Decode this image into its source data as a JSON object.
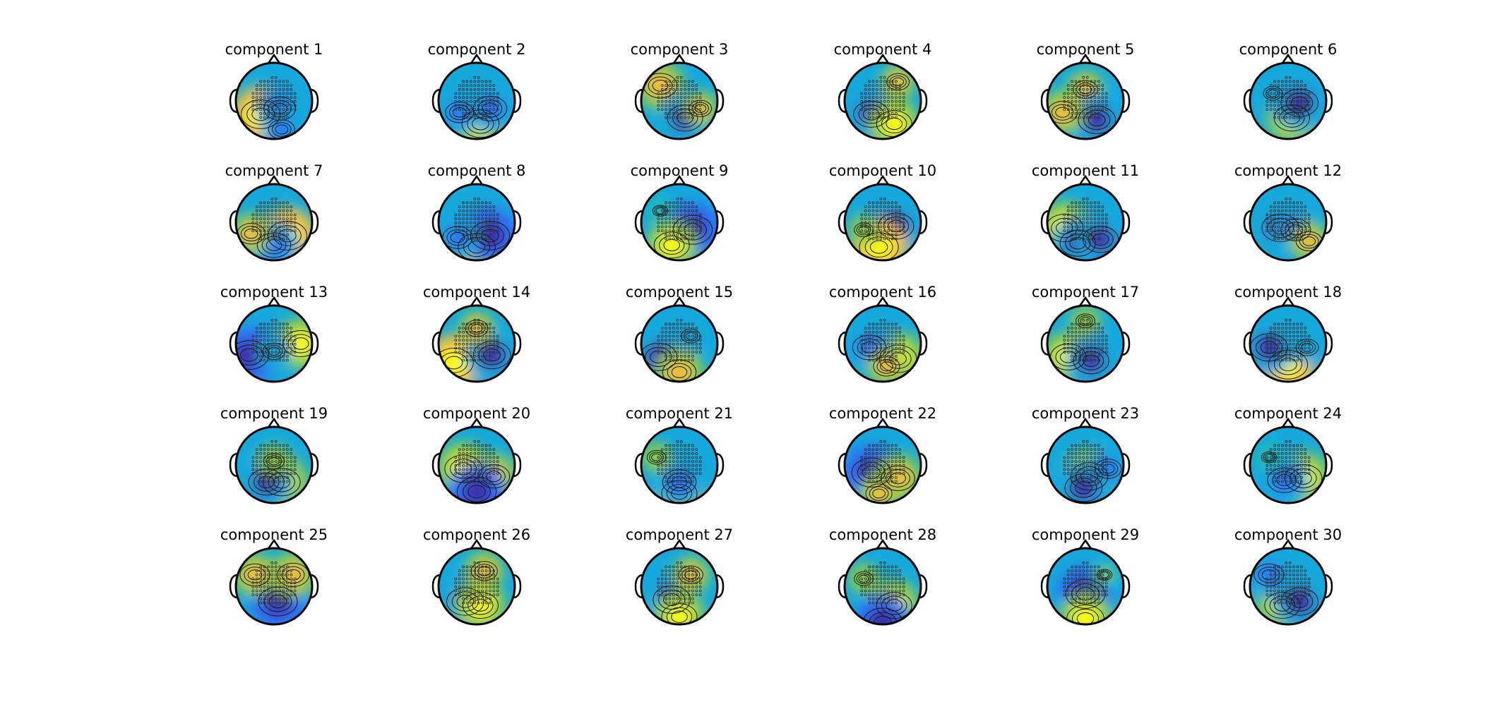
{
  "figure": {
    "rows": 5,
    "cols": 6,
    "colormap": [
      "#3e26a8",
      "#2f6ff5",
      "#16a8db",
      "#27c3a4",
      "#8cc94a",
      "#f2bd3a",
      "#f9fb0e"
    ],
    "outline_color": "#000000",
    "background": "#ffffff"
  },
  "components": [
    {
      "title": "component 1",
      "blobs": [
        {
          "dx": -0.35,
          "dy": 0.35,
          "v": 0.95
        },
        {
          "dx": 0.15,
          "dy": 0.2,
          "v": -0.75
        },
        {
          "dx": 0.2,
          "dy": 0.75,
          "v": -0.6
        }
      ]
    },
    {
      "title": "component 2",
      "blobs": [
        {
          "dx": 0.1,
          "dy": 0.6,
          "v": 0.9
        },
        {
          "dx": 0.35,
          "dy": 0.2,
          "v": -0.8
        },
        {
          "dx": -0.45,
          "dy": 0.3,
          "v": -0.65
        }
      ]
    },
    {
      "title": "component 3",
      "blobs": [
        {
          "dx": -0.5,
          "dy": -0.4,
          "v": 0.8
        },
        {
          "dx": 0.15,
          "dy": 0.45,
          "v": -0.85
        },
        {
          "dx": 0.55,
          "dy": 0.2,
          "v": 0.5
        }
      ]
    },
    {
      "title": "component 4",
      "blobs": [
        {
          "dx": -0.3,
          "dy": 0.35,
          "v": -0.85
        },
        {
          "dx": 0.3,
          "dy": 0.6,
          "v": 0.85
        },
        {
          "dx": 0.4,
          "dy": -0.5,
          "v": 0.5
        }
      ]
    },
    {
      "title": "component 5",
      "blobs": [
        {
          "dx": 0.0,
          "dy": -0.3,
          "v": 0.55
        },
        {
          "dx": 0.3,
          "dy": 0.5,
          "v": -0.9
        },
        {
          "dx": -0.6,
          "dy": 0.3,
          "v": 0.7
        }
      ]
    },
    {
      "title": "component 6",
      "blobs": [
        {
          "dx": 0.1,
          "dy": 0.45,
          "v": 0.85
        },
        {
          "dx": 0.3,
          "dy": 0.05,
          "v": -0.9
        },
        {
          "dx": -0.4,
          "dy": -0.2,
          "v": -0.4
        }
      ]
    },
    {
      "title": "component 7",
      "blobs": [
        {
          "dx": 0.35,
          "dy": 0.35,
          "v": 0.95
        },
        {
          "dx": 0.0,
          "dy": 0.6,
          "v": -0.8
        },
        {
          "dx": -0.6,
          "dy": 0.3,
          "v": 0.65
        }
      ]
    },
    {
      "title": "component 8",
      "blobs": [
        {
          "dx": 0.0,
          "dy": 0.65,
          "v": 0.9
        },
        {
          "dx": 0.35,
          "dy": 0.35,
          "v": -0.95
        },
        {
          "dx": -0.5,
          "dy": 0.4,
          "v": -0.7
        }
      ]
    },
    {
      "title": "component 9",
      "blobs": [
        {
          "dx": 0.35,
          "dy": 0.2,
          "v": -0.95
        },
        {
          "dx": -0.2,
          "dy": 0.6,
          "v": 0.85
        },
        {
          "dx": -0.5,
          "dy": -0.3,
          "v": -0.3
        }
      ]
    },
    {
      "title": "component 10",
      "blobs": [
        {
          "dx": 0.35,
          "dy": 0.1,
          "v": -0.85
        },
        {
          "dx": -0.1,
          "dy": 0.65,
          "v": 0.95
        },
        {
          "dx": -0.5,
          "dy": 0.2,
          "v": 0.4
        }
      ]
    },
    {
      "title": "component 11",
      "blobs": [
        {
          "dx": -0.55,
          "dy": 0.15,
          "v": 0.9
        },
        {
          "dx": -0.2,
          "dy": 0.55,
          "v": -0.85
        },
        {
          "dx": 0.4,
          "dy": 0.45,
          "v": -0.85
        }
      ]
    },
    {
      "title": "component 12",
      "blobs": [
        {
          "dx": -0.2,
          "dy": 0.15,
          "v": -0.9
        },
        {
          "dx": 0.2,
          "dy": 0.2,
          "v": -0.7
        },
        {
          "dx": 0.55,
          "dy": 0.5,
          "v": 0.6
        }
      ]
    },
    {
      "title": "component 13",
      "blobs": [
        {
          "dx": -0.65,
          "dy": 0.3,
          "v": -0.95
        },
        {
          "dx": 0.7,
          "dy": 0.0,
          "v": 0.85
        },
        {
          "dx": 0.0,
          "dy": 0.2,
          "v": -0.5
        }
      ]
    },
    {
      "title": "component 14",
      "blobs": [
        {
          "dx": -0.6,
          "dy": 0.5,
          "v": 0.95
        },
        {
          "dx": 0.4,
          "dy": 0.3,
          "v": -0.9
        },
        {
          "dx": 0.0,
          "dy": -0.4,
          "v": 0.5
        }
      ]
    },
    {
      "title": "component 15",
      "blobs": [
        {
          "dx": -0.55,
          "dy": 0.35,
          "v": -0.9
        },
        {
          "dx": 0.0,
          "dy": 0.75,
          "v": 0.8
        },
        {
          "dx": 0.3,
          "dy": -0.2,
          "v": -0.4
        }
      ]
    },
    {
      "title": "component 16",
      "blobs": [
        {
          "dx": 0.4,
          "dy": 0.4,
          "v": 0.9
        },
        {
          "dx": -0.35,
          "dy": 0.1,
          "v": -0.8
        },
        {
          "dx": 0.1,
          "dy": 0.6,
          "v": 0.6
        }
      ]
    },
    {
      "title": "component 17",
      "blobs": [
        {
          "dx": -0.45,
          "dy": 0.35,
          "v": 0.85
        },
        {
          "dx": 0.15,
          "dy": 0.45,
          "v": -0.85
        },
        {
          "dx": 0.0,
          "dy": -0.6,
          "v": 0.4
        }
      ]
    },
    {
      "title": "component 18",
      "blobs": [
        {
          "dx": 0.0,
          "dy": 0.55,
          "v": 0.95
        },
        {
          "dx": -0.5,
          "dy": 0.1,
          "v": -0.9
        },
        {
          "dx": 0.5,
          "dy": 0.1,
          "v": -0.5
        }
      ]
    },
    {
      "title": "component 19",
      "blobs": [
        {
          "dx": 0.2,
          "dy": 0.45,
          "v": 0.9
        },
        {
          "dx": -0.2,
          "dy": 0.45,
          "v": -0.85
        },
        {
          "dx": 0.0,
          "dy": -0.1,
          "v": 0.45
        }
      ]
    },
    {
      "title": "component 20",
      "blobs": [
        {
          "dx": -0.35,
          "dy": 0.1,
          "v": 0.9
        },
        {
          "dx": 0.45,
          "dy": 0.3,
          "v": 0.75
        },
        {
          "dx": 0.0,
          "dy": 0.7,
          "v": -0.95
        }
      ]
    },
    {
      "title": "component 21",
      "blobs": [
        {
          "dx": 0.0,
          "dy": 0.75,
          "v": 0.85
        },
        {
          "dx": 0.0,
          "dy": 0.45,
          "v": -0.8
        },
        {
          "dx": -0.6,
          "dy": -0.2,
          "v": 0.4
        }
      ]
    },
    {
      "title": "component 22",
      "blobs": [
        {
          "dx": -0.3,
          "dy": 0.2,
          "v": -0.95
        },
        {
          "dx": 0.4,
          "dy": 0.35,
          "v": 0.8
        },
        {
          "dx": -0.1,
          "dy": 0.75,
          "v": 0.6
        }
      ]
    },
    {
      "title": "component 23",
      "blobs": [
        {
          "dx": 0.1,
          "dy": 0.3,
          "v": 0.9
        },
        {
          "dx": -0.05,
          "dy": 0.6,
          "v": -0.9
        },
        {
          "dx": 0.6,
          "dy": 0.1,
          "v": -0.6
        }
      ]
    },
    {
      "title": "component 24",
      "blobs": [
        {
          "dx": 0.4,
          "dy": 0.35,
          "v": 0.9
        },
        {
          "dx": -0.1,
          "dy": 0.4,
          "v": -0.8
        },
        {
          "dx": -0.5,
          "dy": -0.2,
          "v": -0.3
        }
      ]
    },
    {
      "title": "component 25",
      "blobs": [
        {
          "dx": 0.1,
          "dy": 0.4,
          "v": -0.95
        },
        {
          "dx": -0.5,
          "dy": -0.3,
          "v": 0.7
        },
        {
          "dx": 0.5,
          "dy": -0.3,
          "v": 0.75
        }
      ]
    },
    {
      "title": "component 26",
      "blobs": [
        {
          "dx": -0.3,
          "dy": 0.4,
          "v": -0.9
        },
        {
          "dx": 0.1,
          "dy": 0.5,
          "v": 0.85
        },
        {
          "dx": 0.2,
          "dy": -0.4,
          "v": 0.6
        }
      ]
    },
    {
      "title": "component 27",
      "blobs": [
        {
          "dx": -0.2,
          "dy": 0.35,
          "v": -0.9
        },
        {
          "dx": 0.0,
          "dy": 0.8,
          "v": 0.85
        },
        {
          "dx": 0.3,
          "dy": -0.3,
          "v": 0.55
        }
      ]
    },
    {
      "title": "component 28",
      "blobs": [
        {
          "dx": 0.3,
          "dy": 0.5,
          "v": 0.85
        },
        {
          "dx": 0.0,
          "dy": 0.95,
          "v": -0.95
        },
        {
          "dx": -0.5,
          "dy": -0.2,
          "v": 0.4
        }
      ]
    },
    {
      "title": "component 29",
      "blobs": [
        {
          "dx": 0.0,
          "dy": 0.2,
          "v": -0.95
        },
        {
          "dx": 0.0,
          "dy": 0.85,
          "v": 0.9
        },
        {
          "dx": 0.5,
          "dy": -0.3,
          "v": 0.3
        }
      ]
    },
    {
      "title": "component 30",
      "blobs": [
        {
          "dx": -0.15,
          "dy": 0.5,
          "v": 0.85
        },
        {
          "dx": 0.3,
          "dy": 0.4,
          "v": -0.9
        },
        {
          "dx": -0.5,
          "dy": -0.3,
          "v": -0.7
        }
      ]
    }
  ]
}
